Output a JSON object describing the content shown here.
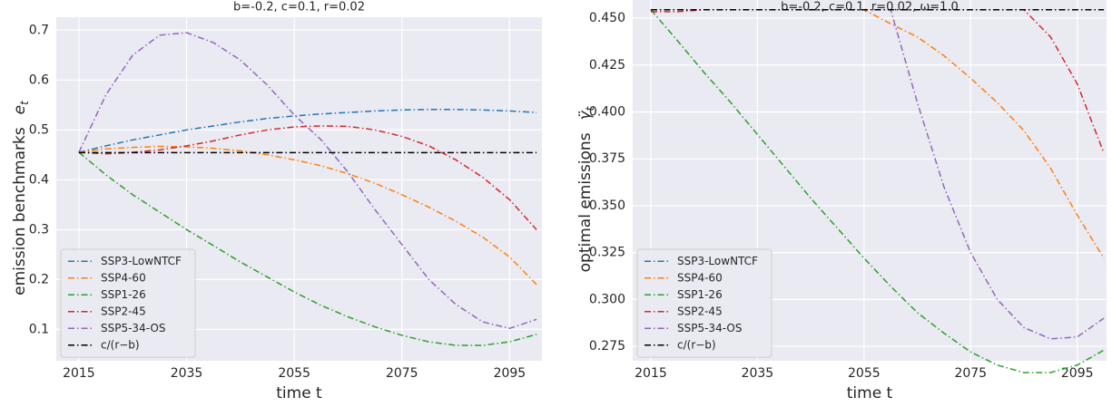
{
  "chart_data": [
    {
      "type": "line",
      "title": "b=-0.2, c=0.1, r=0.02",
      "xlabel": "time t",
      "ylabel": "emission benchmarks",
      "ylabel_symbol": "e",
      "ylabel_subscript": "t",
      "x": [
        2015,
        2020,
        2025,
        2030,
        2035,
        2040,
        2045,
        2050,
        2055,
        2060,
        2065,
        2070,
        2075,
        2080,
        2085,
        2090,
        2095,
        2100
      ],
      "xlim": [
        2010.8,
        2101
      ],
      "xticks": [
        2015,
        2035,
        2055,
        2075,
        2095
      ],
      "ylim": [
        0.037,
        0.726
      ],
      "yticks": [
        0.1,
        0.2,
        0.3,
        0.4,
        0.5,
        0.6,
        0.7
      ],
      "grid": true,
      "legend": "lower left",
      "series": [
        {
          "name": "SSP3-LowNTCF",
          "color": "#1f77b4",
          "values": [
            0.455,
            0.468,
            0.48,
            0.49,
            0.5,
            0.508,
            0.516,
            0.523,
            0.528,
            0.532,
            0.535,
            0.538,
            0.54,
            0.541,
            0.541,
            0.54,
            0.538,
            0.535
          ]
        },
        {
          "name": "SSP4-60",
          "color": "#ff7f0e",
          "values": [
            0.455,
            0.462,
            0.465,
            0.467,
            0.466,
            0.463,
            0.458,
            0.45,
            0.44,
            0.428,
            0.412,
            0.393,
            0.37,
            0.345,
            0.317,
            0.285,
            0.245,
            0.19
          ]
        },
        {
          "name": "SSP1-26",
          "color": "#2ca02c",
          "values": [
            0.455,
            0.41,
            0.37,
            0.335,
            0.3,
            0.268,
            0.235,
            0.205,
            0.175,
            0.148,
            0.125,
            0.105,
            0.088,
            0.075,
            0.068,
            0.068,
            0.075,
            0.09
          ]
        },
        {
          "name": "SSP2-45",
          "color": "#d62728",
          "values": [
            0.455,
            0.452,
            0.455,
            0.46,
            0.468,
            0.478,
            0.49,
            0.5,
            0.506,
            0.508,
            0.507,
            0.5,
            0.487,
            0.468,
            0.44,
            0.405,
            0.36,
            0.3
          ]
        },
        {
          "name": "SSP5-34-OS",
          "color": "#9467bd",
          "values": [
            0.455,
            0.57,
            0.65,
            0.69,
            0.695,
            0.675,
            0.64,
            0.59,
            0.53,
            0.48,
            0.415,
            0.34,
            0.27,
            0.2,
            0.15,
            0.115,
            0.102,
            0.12
          ]
        },
        {
          "name": "c/(r−b)",
          "color": "#000000",
          "values": [
            0.4545,
            0.4545,
            0.4545,
            0.4545,
            0.4545,
            0.4545,
            0.4545,
            0.4545,
            0.4545,
            0.4545,
            0.4545,
            0.4545,
            0.4545,
            0.4545,
            0.4545,
            0.4545,
            0.4545,
            0.4545
          ]
        }
      ]
    },
    {
      "type": "line",
      "title": "b=-0.2, c=0.1, r=0.02, ω=1.0",
      "xlabel": "time t",
      "ylabel": "optimal emissions",
      "ylabel_symbol": "γ̈",
      "ylabel_subscript": "t",
      "x": [
        2015,
        2020,
        2025,
        2030,
        2035,
        2040,
        2045,
        2050,
        2055,
        2060,
        2065,
        2070,
        2075,
        2080,
        2085,
        2090,
        2095,
        2100
      ],
      "xlim": [
        2011.6,
        2100.5
      ],
      "xticks": [
        2015,
        2035,
        2055,
        2075,
        2095
      ],
      "ylim": [
        0.2673,
        0.4597
      ],
      "yticks": [
        {
          "value": 0.275,
          "label": "0.275"
        },
        {
          "value": 0.3,
          "label": "0.300"
        },
        {
          "value": 0.325,
          "label": "0.325"
        },
        {
          "value": 0.35,
          "label": "0.350"
        },
        {
          "value": 0.375,
          "label": "0.375"
        },
        {
          "value": 0.4,
          "label": "0.400"
        },
        {
          "value": 0.425,
          "label": "0.425"
        },
        {
          "value": 0.45,
          "label": "0.450"
        }
      ],
      "grid": true,
      "legend": "lower left",
      "series": [
        {
          "name": "SSP3-LowNTCF",
          "color": "#1f77b4",
          "values": [
            0.4545,
            0.4545,
            0.4545,
            0.4545,
            0.4545,
            0.4545,
            0.4545,
            0.4545,
            0.4545,
            0.4545,
            0.4545,
            0.4545,
            0.4545,
            0.4545,
            0.4545,
            0.4545,
            0.4545,
            0.4545
          ]
        },
        {
          "name": "SSP4-60",
          "color": "#ff7f0e",
          "values": [
            0.4545,
            0.4545,
            0.4545,
            0.4545,
            0.4545,
            0.4545,
            0.4545,
            0.4545,
            0.4545,
            0.447,
            0.44,
            0.43,
            0.418,
            0.405,
            0.39,
            0.37,
            0.345,
            0.322
          ]
        },
        {
          "name": "SSP1-26",
          "color": "#2ca02c",
          "values": [
            0.4545,
            0.438,
            0.421,
            0.405,
            0.388,
            0.371,
            0.354,
            0.338,
            0.322,
            0.307,
            0.293,
            0.282,
            0.272,
            0.265,
            0.261,
            0.261,
            0.265,
            0.273
          ]
        },
        {
          "name": "SSP2-45",
          "color": "#d62728",
          "values": [
            0.4535,
            0.4535,
            0.4545,
            0.4545,
            0.4545,
            0.4545,
            0.4545,
            0.4545,
            0.4545,
            0.4545,
            0.4545,
            0.4545,
            0.4545,
            0.4545,
            0.4545,
            0.44,
            0.415,
            0.378
          ]
        },
        {
          "name": "SSP5-34-OS",
          "color": "#9467bd",
          "values": [
            0.4545,
            0.4545,
            0.4545,
            0.4545,
            0.4545,
            0.4545,
            0.4545,
            0.4545,
            0.4545,
            0.4545,
            0.405,
            0.36,
            0.325,
            0.3,
            0.285,
            0.279,
            0.28,
            0.29
          ]
        },
        {
          "name": "c/(r−b)",
          "color": "#000000",
          "values": [
            0.4545,
            0.4545,
            0.4545,
            0.4545,
            0.4545,
            0.4545,
            0.4545,
            0.4545,
            0.4545,
            0.4545,
            0.4545,
            0.4545,
            0.4545,
            0.4545,
            0.4545,
            0.4545,
            0.4545,
            0.4545
          ]
        }
      ]
    }
  ]
}
